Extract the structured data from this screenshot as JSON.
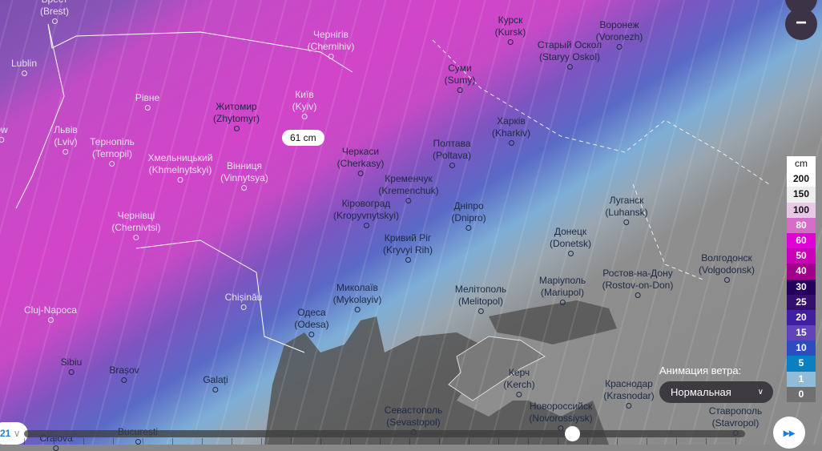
{
  "map": {
    "tooltip": "61 cm",
    "layer": "snow depth"
  },
  "cities": [
    {
      "name": "Брест",
      "latin": "(Brest)"
    },
    {
      "name": "Lublin",
      "latin": ""
    },
    {
      "name": "ów",
      "latin": ""
    },
    {
      "name": "Рівне",
      "latin": ""
    },
    {
      "name": "Житомир",
      "latin": "(Zhytomyr)"
    },
    {
      "name": "Київ",
      "latin": "(Kyiv)"
    },
    {
      "name": "Чернігів",
      "latin": "(Chernihiv)"
    },
    {
      "name": "Львів",
      "latin": "(Lviv)"
    },
    {
      "name": "Тернопіль",
      "latin": "(Ternopil)"
    },
    {
      "name": "Хмельницький",
      "latin": "(Khmelnytskyi)"
    },
    {
      "name": "Вінниця",
      "latin": "(Vinnytsya)"
    },
    {
      "name": "Чернівці",
      "latin": "(Chernivtsi)"
    },
    {
      "name": "Черкаси",
      "latin": "(Cherkasy)"
    },
    {
      "name": "Кременчук",
      "latin": "(Kremenchuk)"
    },
    {
      "name": "Полтава",
      "latin": "(Poltava)"
    },
    {
      "name": "Суми",
      "latin": "(Sumy)"
    },
    {
      "name": "Курск",
      "latin": "(Kursk)"
    },
    {
      "name": "Старый Оскол",
      "latin": "(Staryy Oskol)"
    },
    {
      "name": "Воронеж",
      "latin": "(Voronezh)"
    },
    {
      "name": "Харків",
      "latin": "(Kharkiv)"
    },
    {
      "name": "Кіровоград",
      "latin": "(Kropyvnytskyi)"
    },
    {
      "name": "Дніпро",
      "latin": "(Dnipro)"
    },
    {
      "name": "Кривий Ріг",
      "latin": "(Kryvyi Rih)"
    },
    {
      "name": "Луганск",
      "latin": "(Luhansk)"
    },
    {
      "name": "Донецк",
      "latin": "(Donetsk)"
    },
    {
      "name": "Волгодонск",
      "latin": "(Volgodonsk)"
    },
    {
      "name": "Ростов-на-Дону",
      "latin": "(Rostov-on-Don)"
    },
    {
      "name": "Маріуполь",
      "latin": "(Mariupol)"
    },
    {
      "name": "Мелітополь",
      "latin": "(Melitopol)"
    },
    {
      "name": "Миколаїв",
      "latin": "(Mykolayiv)"
    },
    {
      "name": "Cluj-Napoca",
      "latin": ""
    },
    {
      "name": "Chișinău",
      "latin": ""
    },
    {
      "name": "Одеса",
      "latin": "(Odesa)"
    },
    {
      "name": "Sibiu",
      "latin": ""
    },
    {
      "name": "Brașov",
      "latin": ""
    },
    {
      "name": "Galați",
      "latin": ""
    },
    {
      "name": "Керч",
      "latin": "(Kerch)"
    },
    {
      "name": "Краснодар",
      "latin": "(Krasnodar)"
    },
    {
      "name": "Ставрополь",
      "latin": "(Stavropol)"
    },
    {
      "name": "Новороссийск",
      "latin": "(Novorossiysk)"
    },
    {
      "name": "Севастополь",
      "latin": "(Sevastopol)"
    },
    {
      "name": "București",
      "latin": ""
    },
    {
      "name": "Craiova",
      "latin": ""
    }
  ],
  "legend": {
    "unit": "cm",
    "items": [
      {
        "label": "200",
        "color": "#ffffff"
      },
      {
        "label": "150",
        "color": "#eeeeee"
      },
      {
        "label": "100",
        "color": "#e8c8e4"
      },
      {
        "label": "80",
        "color": "#d46cc8"
      },
      {
        "label": "60",
        "color": "#e000d8"
      },
      {
        "label": "50",
        "color": "#c800b8"
      },
      {
        "label": "40",
        "color": "#a0008c"
      },
      {
        "label": "30",
        "color": "#24005c"
      },
      {
        "label": "25",
        "color": "#34106c"
      },
      {
        "label": "20",
        "color": "#4020a0"
      },
      {
        "label": "15",
        "color": "#6044b8"
      },
      {
        "label": "10",
        "color": "#2c4cc0"
      },
      {
        "label": "5",
        "color": "#0a80c0"
      },
      {
        "label": "1",
        "color": "#90bcd8"
      },
      {
        "label": "0",
        "color": "#707070"
      }
    ]
  },
  "controls": {
    "zoom_out": "−",
    "wind_label": "Анимация ветра:",
    "wind_value": "Нормальная",
    "day": "21",
    "play_icon": "fast-forward-icon",
    "timeline_progress": 0.76
  }
}
